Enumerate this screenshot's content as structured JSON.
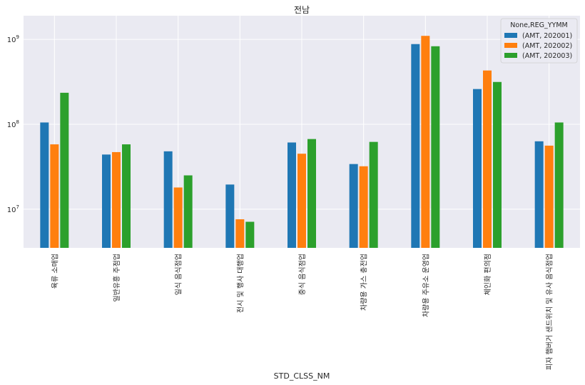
{
  "chart_data": {
    "type": "bar",
    "title": "전남",
    "xlabel": "STD_CLSS_NM",
    "ylabel": "",
    "yscale": "log",
    "ylim": [
      3500000,
      1900000000
    ],
    "y_ticks": [
      10000000,
      100000000,
      1000000000
    ],
    "y_tick_labels": [
      {
        "base": "10",
        "exp": "7"
      },
      {
        "base": "10",
        "exp": "8"
      },
      {
        "base": "10",
        "exp": "9"
      }
    ],
    "grid": true,
    "legend_position": "top-right",
    "legend_title": "None,REG_YYMM",
    "categories": [
      "육류 소매업",
      "일반유흥 주점업",
      "일식 음식점업",
      "전시 및 행사 대행업",
      "중식 음식점업",
      "차량용 가스 충전업",
      "차량용 주유소 운영업",
      "체인화 편의점",
      "피자 햄버거 샌드위치 및 유사 음식점업"
    ],
    "series": [
      {
        "name": "(AMT, 202001)",
        "color": "#1f77b4",
        "values": [
          105000000,
          44000000,
          48000000,
          19500000,
          61000000,
          34000000,
          880000000,
          260000000,
          63000000
        ]
      },
      {
        "name": "(AMT, 202002)",
        "color": "#ff7f0e",
        "values": [
          58000000,
          47000000,
          18000000,
          7600000,
          45000000,
          32000000,
          1100000000,
          430000000,
          56000000
        ]
      },
      {
        "name": "(AMT, 202003)",
        "color": "#2ca02c",
        "values": [
          235000000,
          58000000,
          25000000,
          7100000,
          67000000,
          62000000,
          830000000,
          315000000,
          105000000
        ]
      }
    ]
  }
}
